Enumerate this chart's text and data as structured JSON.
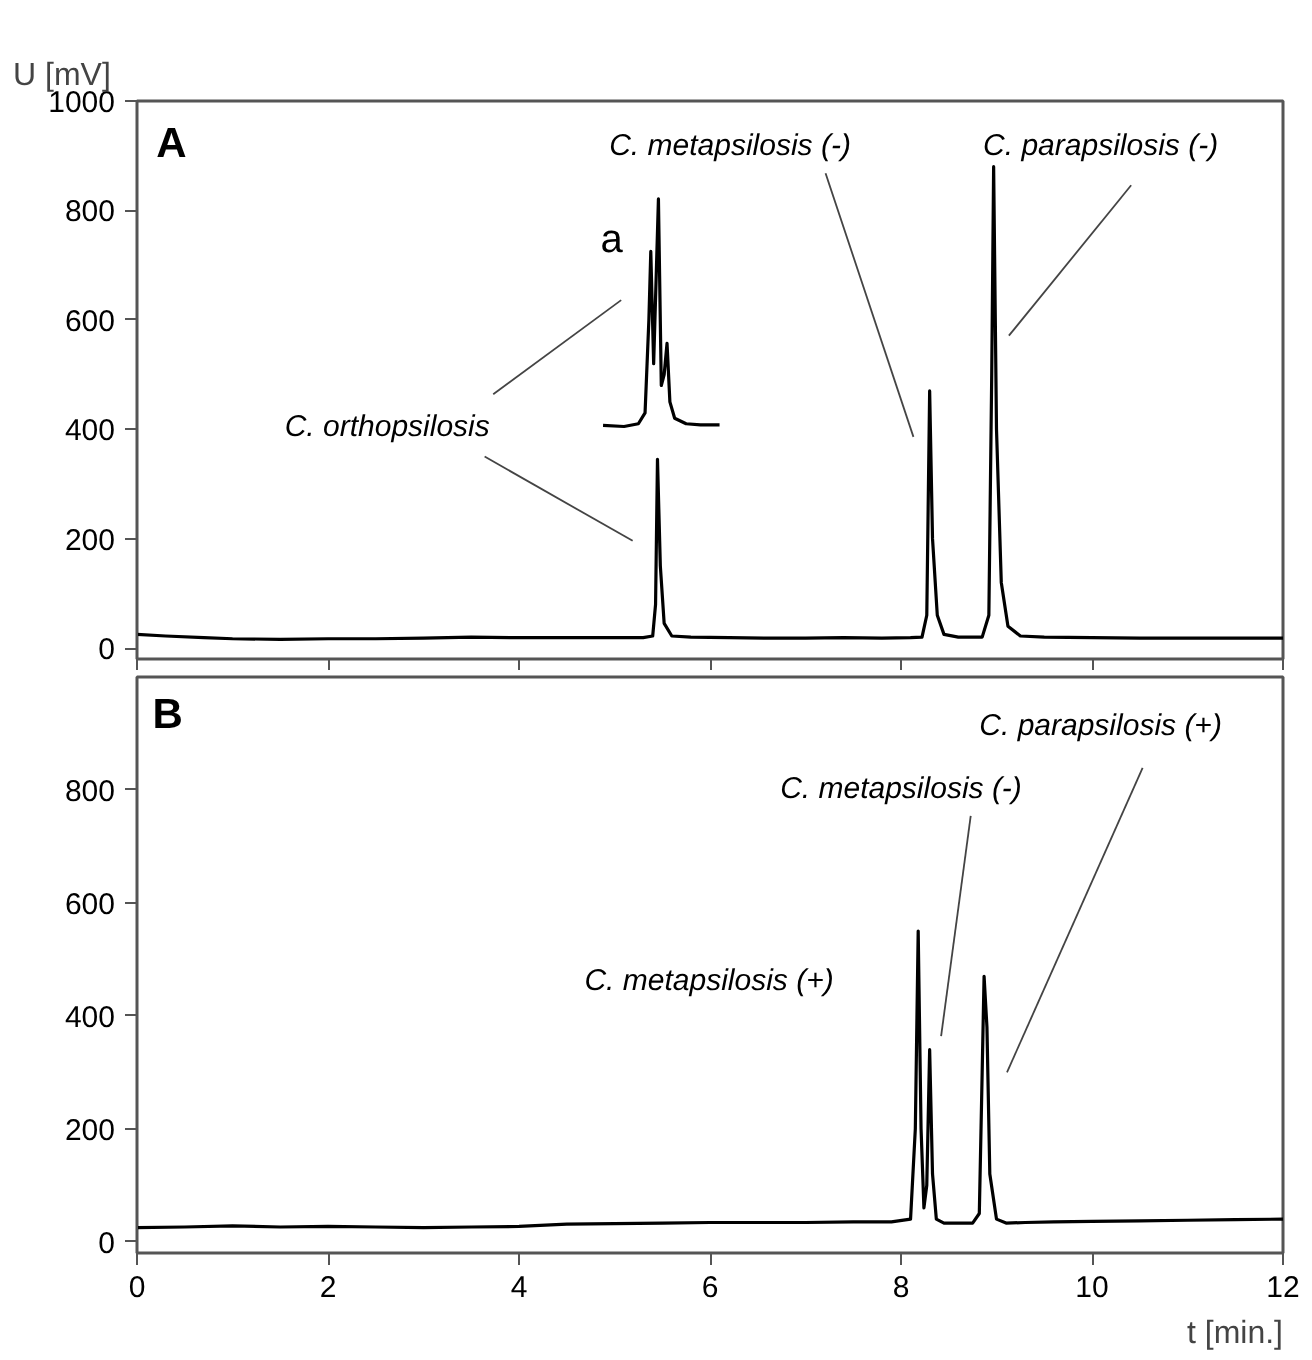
{
  "chart_data": [
    {
      "type": "line",
      "ylabel": "U [mV]",
      "xlim": [
        0,
        12
      ],
      "xticks": [
        0,
        2,
        4,
        6,
        8,
        10,
        12
      ],
      "ylim": [
        -20,
        1000
      ],
      "yticks": [
        0,
        200,
        400,
        600,
        800,
        1000
      ],
      "tick_labels": "y",
      "series": [
        {
          "color": "#000000",
          "x": [
            0,
            0.3,
            0.7,
            1,
            1.5,
            2,
            2.5,
            3,
            3.5,
            4,
            4.5,
            5,
            5.3,
            5.4,
            5.43,
            5.45,
            5.48,
            5.52,
            5.6,
            5.8,
            6.2,
            6.6,
            7,
            7.4,
            7.8,
            8.1,
            8.22,
            8.27,
            8.3,
            8.33,
            8.38,
            8.45,
            8.6,
            8.85,
            8.92,
            8.95,
            8.97,
            9.0,
            9.05,
            9.12,
            9.25,
            9.5,
            10,
            10.5,
            11,
            11.5,
            12
          ],
          "values": [
            25,
            22,
            19,
            17,
            16,
            17,
            17,
            18,
            20,
            19,
            19,
            19,
            19,
            22,
            80,
            345,
            150,
            45,
            22,
            20,
            19,
            18,
            18,
            19,
            18,
            19,
            20,
            60,
            470,
            200,
            60,
            25,
            20,
            20,
            60,
            500,
            880,
            400,
            120,
            40,
            22,
            20,
            19,
            18,
            18,
            18,
            18
          ]
        },
        {
          "color": "#000000",
          "x": [
            4.88,
            5.1,
            5.25,
            5.32,
            5.36,
            5.38,
            5.41,
            5.44,
            5.46,
            5.49,
            5.52,
            5.55,
            5.58,
            5.63,
            5.75,
            5.9,
            6.1
          ],
          "values": [
            407,
            405,
            410,
            430,
            600,
            725,
            520,
            700,
            821,
            480,
            500,
            557,
            450,
            420,
            410,
            408,
            408
          ]
        }
      ],
      "annotations": [
        "A",
        "a",
        "C. orthopsilosis",
        "C. metapsilosis (-)",
        "C. parapsilosis (-)"
      ]
    },
    {
      "type": "line",
      "xlabel": "t [min.]",
      "xlim": [
        0,
        12
      ],
      "xticks": [
        0,
        2,
        4,
        6,
        8,
        10,
        12
      ],
      "ylim": [
        -20,
        1000
      ],
      "yticks": [
        0,
        200,
        400,
        600,
        800
      ],
      "series": [
        {
          "color": "#000000",
          "x": [
            0,
            0.5,
            1,
            1.5,
            2,
            2.5,
            3,
            3.5,
            4,
            4.5,
            5,
            5.5,
            6,
            6.5,
            7,
            7.5,
            7.9,
            8.1,
            8.15,
            8.18,
            8.21,
            8.24,
            8.27,
            8.3,
            8.33,
            8.37,
            8.45,
            8.6,
            8.75,
            8.82,
            8.85,
            8.87,
            8.9,
            8.93,
            9.0,
            9.1,
            9.3,
            9.6,
            10,
            10.5,
            11,
            11.5,
            12
          ],
          "values": [
            25,
            26,
            28,
            26,
            27,
            26,
            25,
            26,
            27,
            31,
            32,
            33,
            34,
            34,
            34,
            35,
            35,
            40,
            200,
            550,
            200,
            60,
            100,
            340,
            120,
            40,
            33,
            33,
            33,
            50,
            300,
            470,
            380,
            120,
            40,
            33,
            34,
            35,
            36,
            37,
            38,
            39,
            40
          ]
        }
      ],
      "annotations": [
        "B",
        "C. metapsilosis (+)",
        "C. metapsilosis (-)",
        "C. parapsilosis (+)"
      ]
    }
  ]
}
